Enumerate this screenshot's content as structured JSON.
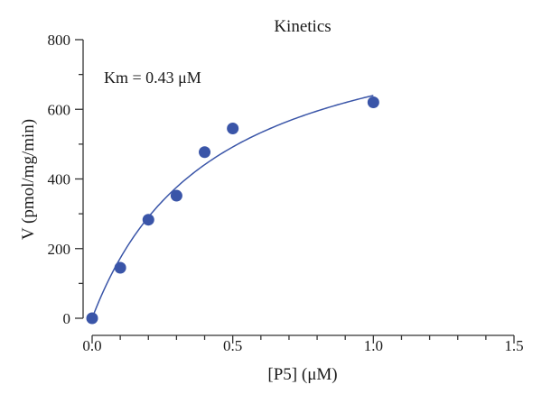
{
  "chart_data": {
    "type": "scatter",
    "title": "Kinetics",
    "xlabel": "[P5] (μM)",
    "ylabel": "V (pmol/mg/min)",
    "annotation": "Km = 0.43 μM",
    "xlim": [
      0,
      1.5
    ],
    "ylim": [
      0,
      800
    ],
    "x_ticks": [
      0.0,
      0.5,
      1.0,
      1.5
    ],
    "x_tick_labels": [
      "0.0",
      "0.5",
      "1.0",
      "1.5"
    ],
    "x_minor_step": 0.1,
    "y_ticks": [
      0,
      200,
      400,
      600,
      800
    ],
    "y_tick_labels": [
      "0",
      "200",
      "400",
      "600",
      "800"
    ],
    "y_minor_step": 100,
    "grid": false,
    "series": [
      {
        "points": [
          {
            "x": 0.0,
            "y": 0
          },
          {
            "x": 0.1,
            "y": 145
          },
          {
            "x": 0.2,
            "y": 283
          },
          {
            "x": 0.3,
            "y": 352
          },
          {
            "x": 0.4,
            "y": 477
          },
          {
            "x": 0.5,
            "y": 545
          },
          {
            "x": 1.0,
            "y": 620
          }
        ],
        "color": "#3a55a8"
      }
    ],
    "fit": {
      "model": "michaelis-menten",
      "km": 0.43,
      "vmax": 915,
      "x_range": [
        0,
        1.0
      ],
      "color": "#3a55a8"
    }
  }
}
